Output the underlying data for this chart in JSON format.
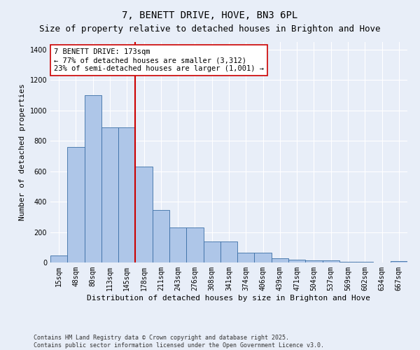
{
  "title": "7, BENETT DRIVE, HOVE, BN3 6PL",
  "subtitle": "Size of property relative to detached houses in Brighton and Hove",
  "xlabel": "Distribution of detached houses by size in Brighton and Hove",
  "ylabel": "Number of detached properties",
  "bin_labels": [
    "15sqm",
    "48sqm",
    "80sqm",
    "113sqm",
    "145sqm",
    "178sqm",
    "211sqm",
    "243sqm",
    "276sqm",
    "308sqm",
    "341sqm",
    "374sqm",
    "406sqm",
    "439sqm",
    "471sqm",
    "504sqm",
    "537sqm",
    "569sqm",
    "602sqm",
    "634sqm",
    "667sqm"
  ],
  "bar_values": [
    47,
    760,
    1100,
    890,
    890,
    630,
    345,
    230,
    230,
    137,
    137,
    65,
    65,
    27,
    20,
    15,
    12,
    5,
    5,
    0,
    10
  ],
  "bar_color": "#aec6e8",
  "bar_edge_color": "#3a6ea5",
  "background_color": "#e8eef8",
  "grid_color": "#ffffff",
  "vline_index": 5,
  "vline_color": "#cc0000",
  "annotation_text": "7 BENETT DRIVE: 173sqm\n← 77% of detached houses are smaller (3,312)\n23% of semi-detached houses are larger (1,001) →",
  "annotation_box_color": "#ffffff",
  "annotation_box_edge": "#cc0000",
  "ylim": [
    0,
    1450
  ],
  "yticks": [
    0,
    200,
    400,
    600,
    800,
    1000,
    1200,
    1400
  ],
  "footer": "Contains HM Land Registry data © Crown copyright and database right 2025.\nContains public sector information licensed under the Open Government Licence v3.0.",
  "title_fontsize": 10,
  "subtitle_fontsize": 9,
  "xlabel_fontsize": 8,
  "ylabel_fontsize": 8,
  "tick_fontsize": 7,
  "annotation_fontsize": 7.5,
  "footer_fontsize": 6
}
